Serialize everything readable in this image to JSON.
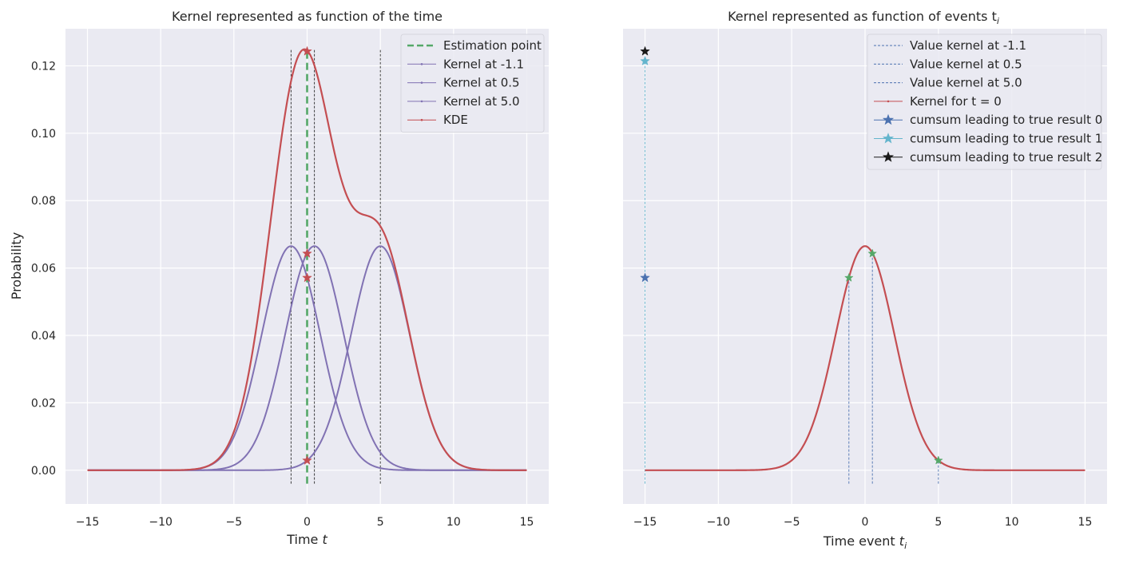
{
  "chart_data": [
    {
      "type": "line",
      "title": "Kernel represented as function of the time",
      "xlabel": "Time t",
      "ylabel": "Probability",
      "xlim": [
        -16.5,
        16.5
      ],
      "ylim": [
        -0.01,
        0.131
      ],
      "xticks": [
        -15,
        -10,
        -5,
        0,
        5,
        10,
        15
      ],
      "xtick_labels": [
        "−15",
        "−10",
        "−5",
        "0",
        "5",
        "10",
        "15"
      ],
      "yticks": [
        0.0,
        0.02,
        0.04,
        0.06,
        0.08,
        0.1,
        0.12
      ],
      "ytick_labels": [
        "0.00",
        "0.02",
        "0.04",
        "0.06",
        "0.08",
        "0.10",
        "0.12"
      ],
      "grid": true,
      "legend_position": "top-right",
      "x_range": [
        -15,
        15
      ],
      "kernel_sigma": 2.0,
      "kernel_peak": 0.0665,
      "events": [
        -1.1,
        0.5,
        5.0
      ],
      "estimation_point": 0,
      "event_marker_ymax": 0.125,
      "series": [
        {
          "name": "Estimation point",
          "style": "dashed",
          "color": "#55a868",
          "kind": "vline",
          "x": 0,
          "y_range": [
            -0.004,
            0.125
          ]
        },
        {
          "name": "Kernel at -1.1",
          "color": "#8172b3",
          "kind": "kernel",
          "center": -1.1
        },
        {
          "name": "Kernel at 0.5",
          "color": "#8172b3",
          "kind": "kernel",
          "center": 0.5
        },
        {
          "name": "Kernel at 5.0",
          "color": "#8172b3",
          "kind": "kernel",
          "center": 5.0
        },
        {
          "name": "KDE",
          "color": "#c44e52",
          "kind": "sum"
        }
      ],
      "star_markers": {
        "color": "#c44e52",
        "x": 0,
        "y": [
          0.0643,
          0.0571,
          0.0029,
          0.1243
        ]
      }
    },
    {
      "type": "line",
      "title": "Kernel represented as function of events t",
      "title_sub": "i",
      "xlabel": "Time event t",
      "xlabel_sub": "i",
      "xlim": [
        -16.5,
        16.5
      ],
      "ylim": [
        -0.01,
        0.131
      ],
      "xticks": [
        -15,
        -10,
        -5,
        0,
        5,
        10,
        15
      ],
      "xtick_labels": [
        "−15",
        "−10",
        "−5",
        "0",
        "5",
        "10",
        "15"
      ],
      "yticks": [
        0.0,
        0.02,
        0.04,
        0.06,
        0.08,
        0.1,
        0.12
      ],
      "grid": true,
      "legend_position": "top-right",
      "x_range": [
        -15,
        15
      ],
      "kernel_sigma": 2.0,
      "kernel_peak": 0.0665,
      "series": [
        {
          "name": "Value kernel at -1.1",
          "style": "dashed",
          "color": "#4c72b0",
          "kind": "vline",
          "x": -1.1
        },
        {
          "name": "Value kernel at 0.5",
          "style": "dashed",
          "color": "#4c72b0",
          "kind": "vline",
          "x": 0.5
        },
        {
          "name": "Value kernel at 5.0",
          "style": "dashed",
          "color": "#4c72b0",
          "kind": "vline",
          "x": 5.0
        },
        {
          "name": "Kernel for t = 0",
          "color": "#c44e52",
          "kind": "kernel",
          "center": 0
        },
        {
          "name": "cumsum leading to true result 0",
          "color": "#4c72b0",
          "marker": "star",
          "points": [
            [
              -15,
              0.0571
            ]
          ]
        },
        {
          "name": "cumsum leading to true result 1",
          "color": "#64b5cd",
          "marker": "star",
          "points": [
            [
              -15,
              0.1214
            ]
          ]
        },
        {
          "name": "cumsum leading to true result 2",
          "color": "#1a1a1a",
          "marker": "star",
          "points": [
            [
              -15,
              0.1243
            ]
          ]
        }
      ],
      "green_stars": {
        "color": "#55a868",
        "x": [
          -1.1,
          0.5,
          5.0
        ],
        "y": [
          0.0571,
          0.0643,
          0.0029
        ]
      },
      "stem_xs": [
        -15,
        -1.1,
        0.5,
        5.0
      ],
      "stem_bottom": -0.004
    }
  ]
}
